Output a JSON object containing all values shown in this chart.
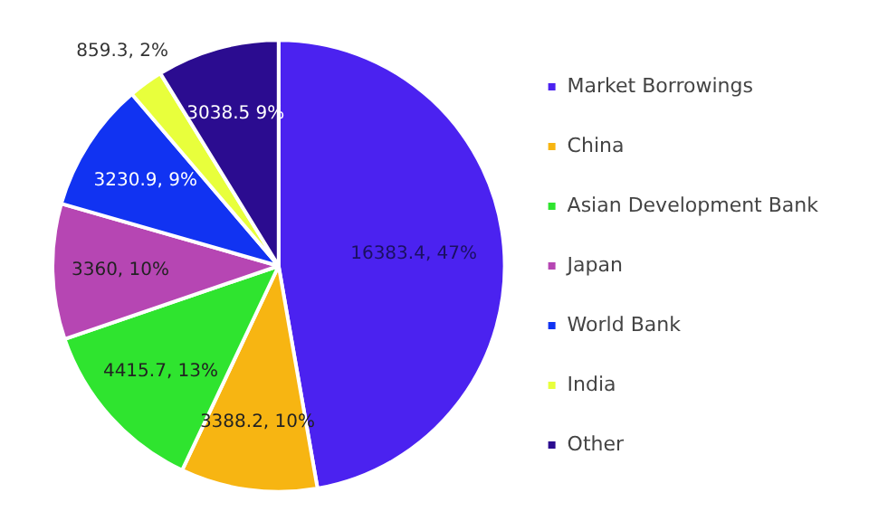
{
  "chart_data": {
    "type": "pie",
    "categories": [
      "Market Borrowings",
      "China",
      "Asian Development Bank",
      "Japan",
      "World Bank",
      "India",
      "Other"
    ],
    "values": [
      16383.4,
      3388.2,
      4415.7,
      3360,
      3230.9,
      859.3,
      3038.5
    ],
    "colors": [
      "#4b22f0",
      "#f7b512",
      "#2fe42f",
      "#b646b3",
      "#1133f2",
      "#e8ff3c",
      "#2b0c90"
    ],
    "value_labels": [
      "16383.4, 47%",
      "3388.2, 10%",
      "4415.7, 13%",
      "3360, 10%",
      "3230.9, 9%",
      "859.3, 2%",
      "3038.5 9%"
    ],
    "legend": "right"
  }
}
